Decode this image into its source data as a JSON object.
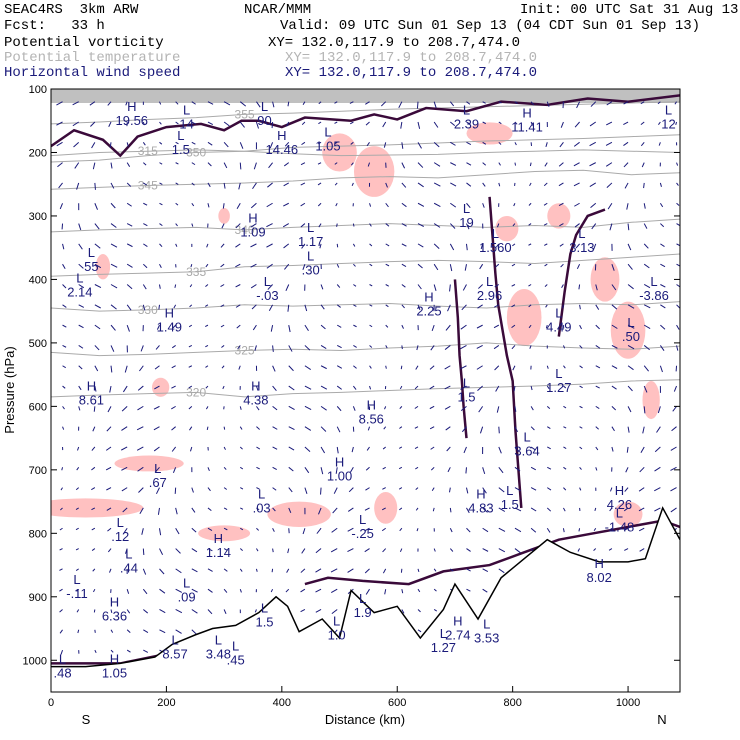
{
  "header": {
    "model": "SEAC4RS  3km ARW",
    "center": "NCAR/MMM",
    "init": "Init: 00 UTC Sat 31 Aug 13",
    "fcst": "Fcst:   33 h",
    "valid": "Valid: 09 UTC Sun 01 Sep 13 (04 CDT Sun 01 Sep 13)",
    "fields": [
      {
        "name": "Potential vorticity",
        "xy": "XY= 132.0,117.9 to 208.7,474.0",
        "color": "#000000"
      },
      {
        "name": "Potential temperature",
        "xy": "XY= 132.0,117.9 to 208.7,474.0",
        "color": "#b4b4b4"
      },
      {
        "name": "Horizontal wind speed",
        "xy": "XY= 132.0,117.9 to 208.7,474.0",
        "color": "#1a1a7a"
      }
    ]
  },
  "colors": {
    "pv_contour": "#3a0a3a",
    "theta": "#aaaaaa",
    "wind": "#1a1a7a",
    "pink_fill": "#ffb6b6",
    "terrain": "#000000",
    "gray_fill": "#8c8c8c"
  },
  "chart_data": {
    "type": "cross-section",
    "xlabel": "Distance (km)",
    "ylabel": "Pressure (hPa)",
    "xlim": [
      0,
      1090
    ],
    "ylim": [
      1050,
      100
    ],
    "x_ticks": [
      0,
      200,
      400,
      600,
      800,
      1000
    ],
    "y_ticks": [
      100,
      200,
      300,
      400,
      500,
      600,
      700,
      800,
      900,
      1000
    ],
    "x_endpoint_labels": {
      "left": "S",
      "right": "N"
    },
    "theta_contours": [
      {
        "label": "315",
        "pressure": [
          205,
          200,
          198,
          196,
          198,
          202,
          205,
          204,
          203,
          200,
          198,
          196,
          198,
          200
        ]
      },
      {
        "label": "320",
        "pressure": [
          585,
          582,
          580,
          578,
          585,
          580,
          578,
          575,
          572,
          570,
          568,
          565,
          560,
          558
        ]
      },
      {
        "label": "325",
        "pressure": [
          515,
          520,
          518,
          515,
          512,
          510,
          512,
          508,
          505,
          500,
          505,
          508,
          510,
          505
        ]
      },
      {
        "label": "330",
        "pressure": [
          445,
          450,
          448,
          445,
          440,
          442,
          440,
          438,
          442,
          445,
          440,
          438,
          440,
          435
        ]
      },
      {
        "label": "335",
        "pressure": [
          395,
          392,
          390,
          388,
          380,
          378,
          375,
          372,
          370,
          372,
          375,
          370,
          365,
          360
        ]
      },
      {
        "label": "340",
        "pressure": [
          325,
          322,
          320,
          318,
          322,
          318,
          315,
          312,
          315,
          318,
          315,
          318,
          310,
          305
        ]
      },
      {
        "label": "345",
        "pressure": [
          258,
          255,
          252,
          250,
          248,
          245,
          240,
          238,
          240,
          235,
          230,
          228,
          235,
          232
        ]
      },
      {
        "label": "350",
        "pressure": [
          215,
          212,
          205,
          200,
          198,
          192,
          190,
          188,
          185,
          182,
          180,
          178,
          175,
          172
        ]
      },
      {
        "label": "355",
        "pressure": [
          155,
          152,
          148,
          145,
          140,
          138,
          135,
          132,
          130,
          128,
          126,
          124,
          122,
          120
        ]
      }
    ],
    "terrain_pressure": [
      1010,
      1010,
      1005,
      995,
      975,
      960,
      950,
      945,
      925,
      900,
      915,
      955,
      935,
      965,
      890,
      925,
      915,
      965,
      920,
      880,
      935,
      870,
      840,
      810,
      830,
      845,
      845,
      840,
      760,
      810
    ],
    "terrain_x_km": [
      0,
      60,
      120,
      180,
      210,
      250,
      280,
      320,
      360,
      390,
      410,
      430,
      470,
      500,
      520,
      560,
      600,
      640,
      680,
      700,
      740,
      780,
      820,
      860,
      900,
      950,
      1000,
      1030,
      1060,
      1090
    ],
    "extrema": [
      {
        "type": "H",
        "value": "19.56",
        "x": 140,
        "p": 135
      },
      {
        "type": "L",
        "value": "90",
        "x": 370,
        "p": 135
      },
      {
        "type": "L",
        "value": "14",
        "x": 235,
        "p": 140
      },
      {
        "type": "H",
        "value": "14.46",
        "x": 400,
        "p": 180
      },
      {
        "type": "L",
        "value": "1.05",
        "x": 480,
        "p": 175
      },
      {
        "type": "L",
        "value": "1.5",
        "x": 225,
        "p": 180
      },
      {
        "type": "L",
        "value": "2.39",
        "x": 720,
        "p": 140
      },
      {
        "type": "H",
        "value": "11.41",
        "x": 825,
        "p": 145
      },
      {
        "type": "L",
        "value": "12",
        "x": 1070,
        "p": 140
      },
      {
        "type": "H",
        "value": "1.09",
        "x": 350,
        "p": 310
      },
      {
        "type": "L",
        "value": "1.17",
        "x": 450,
        "p": 325
      },
      {
        "type": "L",
        "value": "19",
        "x": 720,
        "p": 295
      },
      {
        "type": "L",
        "value": "1.560",
        "x": 770,
        "p": 335
      },
      {
        "type": "L",
        "value": "3.13",
        "x": 920,
        "p": 335
      },
      {
        "type": "L",
        "value": "55",
        "x": 70,
        "p": 365
      },
      {
        "type": "L",
        "value": "2.14",
        "x": 50,
        "p": 405
      },
      {
        "type": "L",
        "value": ".30",
        "x": 450,
        "p": 370
      },
      {
        "type": "L",
        "value": "-.03",
        "x": 375,
        "p": 410
      },
      {
        "type": "H",
        "value": "2.25",
        "x": 655,
        "p": 435
      },
      {
        "type": "L",
        "value": "2.96",
        "x": 760,
        "p": 410
      },
      {
        "type": "L",
        "value": "-3.86",
        "x": 1045,
        "p": 410
      },
      {
        "type": "H",
        "value": "1.49",
        "x": 205,
        "p": 460
      },
      {
        "type": "L",
        "value": "4.49",
        "x": 880,
        "p": 460
      },
      {
        "type": "L",
        "value": ".50",
        "x": 1005,
        "p": 475
      },
      {
        "type": "H",
        "value": "8.61",
        "x": 70,
        "p": 575
      },
      {
        "type": "H",
        "value": "4.38",
        "x": 355,
        "p": 575
      },
      {
        "type": "H",
        "value": "8.56",
        "x": 555,
        "p": 605
      },
      {
        "type": "L",
        "value": "1.5",
        "x": 720,
        "p": 570
      },
      {
        "type": "L",
        "value": "1.27",
        "x": 880,
        "p": 555
      },
      {
        "type": "L",
        "value": "3.64",
        "x": 825,
        "p": 655
      },
      {
        "type": "L",
        "value": ".67",
        "x": 185,
        "p": 705
      },
      {
        "type": "H",
        "value": "1.00",
        "x": 500,
        "p": 695
      },
      {
        "type": "H",
        "value": "4.83",
        "x": 745,
        "p": 745
      },
      {
        "type": "L",
        "value": "1.5",
        "x": 795,
        "p": 740
      },
      {
        "type": "L",
        "value": ".03",
        "x": 365,
        "p": 745
      },
      {
        "type": "H",
        "value": "4.26",
        "x": 985,
        "p": 740
      },
      {
        "type": "L",
        "value": "-1.48",
        "x": 985,
        "p": 775
      },
      {
        "type": "L",
        "value": ".12",
        "x": 120,
        "p": 790
      },
      {
        "type": "L",
        "value": "-.25",
        "x": 540,
        "p": 785
      },
      {
        "type": "H",
        "value": "1.14",
        "x": 290,
        "p": 815
      },
      {
        "type": "L",
        "value": ".44",
        "x": 135,
        "p": 840
      },
      {
        "type": "H",
        "value": "8.02",
        "x": 950,
        "p": 855
      },
      {
        "type": "L",
        "value": ".09",
        "x": 235,
        "p": 885
      },
      {
        "type": "L",
        "value": "-.11",
        "x": 45,
        "p": 880
      },
      {
        "type": "H",
        "value": "6.36",
        "x": 110,
        "p": 915
      },
      {
        "type": "L",
        "value": "1.5",
        "x": 370,
        "p": 925
      },
      {
        "type": "L",
        "value": "1.9",
        "x": 540,
        "p": 910
      },
      {
        "type": "L",
        "value": "1.0",
        "x": 495,
        "p": 945
      },
      {
        "type": "H",
        "value": "2.74",
        "x": 705,
        "p": 945
      },
      {
        "type": "L",
        "value": "3.53",
        "x": 755,
        "p": 950
      },
      {
        "type": "L",
        "value": "1.27",
        "x": 680,
        "p": 965
      },
      {
        "type": "L",
        "value": "8.57",
        "x": 215,
        "p": 975
      },
      {
        "type": "L",
        "value": "3.48",
        "x": 290,
        "p": 975
      },
      {
        "type": "L",
        "value": ".45",
        "x": 320,
        "p": 985
      },
      {
        "type": "H",
        "value": "1.05",
        "x": 110,
        "p": 1005
      },
      {
        "type": "L",
        "value": ".48",
        "x": 20,
        "p": 1005
      }
    ]
  }
}
